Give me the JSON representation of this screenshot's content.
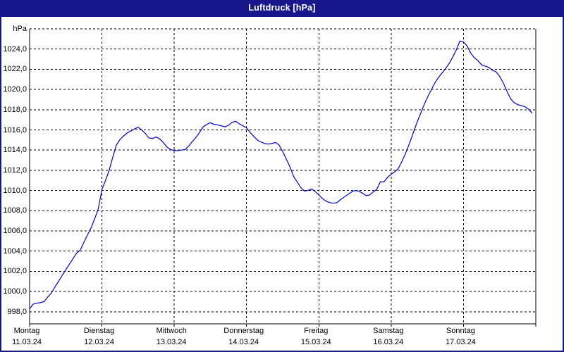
{
  "window": {
    "title": "Luftdruck [hPa]"
  },
  "axes": {
    "y_unit_label": "hPa",
    "y_tick_labels": [
      "1024,0",
      "1022,0",
      "1020,0",
      "1018,0",
      "1016,0",
      "1014,0",
      "1012,0",
      "1010,0",
      "1008,0",
      "1006,0",
      "1004,0",
      "1002,0",
      "1000,0",
      "998,0"
    ],
    "x_day_labels": [
      {
        "day": "Montag",
        "date": "11.03.24"
      },
      {
        "day": "Dienstag",
        "date": "12.03.24"
      },
      {
        "day": "Mittwoch",
        "date": "13.03.24"
      },
      {
        "day": "Donnerstag",
        "date": "14.03.24"
      },
      {
        "day": "Freitag",
        "date": "15.03.24"
      },
      {
        "day": "Samstag",
        "date": "16.03.24"
      },
      {
        "day": "Sonntag",
        "date": "17.03.24"
      }
    ]
  },
  "colors": {
    "window_frame": "#18188c",
    "title_bar": "#18188c",
    "title_text": "#ffffff",
    "plot_background": "#ffffff",
    "grid": "#000000",
    "axis": "#000000",
    "line": "#0000c8"
  },
  "chart_data": {
    "type": "line",
    "title": "Luftdruck [hPa]",
    "ylabel": "hPa",
    "xlabel": "",
    "ylim_gridlines": [
      998,
      1026
    ],
    "y_gridline_step_hpa": 2,
    "x_span_days": 7,
    "x_categories": [
      "Montag 11.03.24",
      "Dienstag 12.03.24",
      "Mittwoch 13.03.24",
      "Donnerstag 14.03.24",
      "Freitag 15.03.24",
      "Samstag 16.03.24",
      "Sonntag 17.03.24"
    ],
    "grid": "dashed",
    "legend_position": "none",
    "sample_interval_days": 0.05,
    "x_start_day": 0,
    "series": [
      {
        "name": "Luftdruck",
        "unit": "hPa",
        "values": [
          998.3,
          998.75,
          998.85,
          998.9,
          999.0,
          999.45,
          999.85,
          1000.45,
          1001.0,
          1001.6,
          1002.15,
          1002.7,
          1003.25,
          1003.8,
          1004.1,
          1004.85,
          1005.6,
          1006.3,
          1007.2,
          1008.2,
          1010.1,
          1011.0,
          1012.0,
          1013.3,
          1014.5,
          1015.05,
          1015.4,
          1015.7,
          1015.9,
          1016.1,
          1016.25,
          1016.0,
          1015.65,
          1015.2,
          1015.15,
          1015.3,
          1015.1,
          1014.75,
          1014.3,
          1014.05,
          1013.95,
          1013.95,
          1014.0,
          1014.05,
          1014.4,
          1014.85,
          1015.25,
          1015.75,
          1016.3,
          1016.55,
          1016.7,
          1016.55,
          1016.5,
          1016.4,
          1016.3,
          1016.45,
          1016.75,
          1016.85,
          1016.6,
          1016.4,
          1016.2,
          1015.75,
          1015.35,
          1015.0,
          1014.8,
          1014.65,
          1014.6,
          1014.65,
          1014.75,
          1014.5,
          1013.85,
          1013.1,
          1012.35,
          1011.4,
          1010.85,
          1010.3,
          1009.95,
          1010.0,
          1010.15,
          1009.9,
          1009.55,
          1009.2,
          1008.95,
          1008.8,
          1008.75,
          1008.8,
          1009.1,
          1009.35,
          1009.6,
          1009.85,
          1010.0,
          1009.95,
          1009.75,
          1009.5,
          1009.55,
          1009.85,
          1010.1,
          1010.85,
          1010.85,
          1011.3,
          1011.6,
          1011.85,
          1012.2,
          1012.9,
          1013.7,
          1014.6,
          1015.6,
          1016.6,
          1017.5,
          1018.4,
          1019.2,
          1019.9,
          1020.6,
          1021.15,
          1021.6,
          1022.05,
          1022.55,
          1023.2,
          1023.9,
          1024.8,
          1024.7,
          1024.3,
          1023.6,
          1023.15,
          1022.85,
          1022.45,
          1022.3,
          1022.2,
          1021.9,
          1021.75,
          1021.3,
          1020.65,
          1019.85,
          1019.1,
          1018.7,
          1018.5,
          1018.4,
          1018.3,
          1018.05,
          1017.65
        ]
      }
    ]
  }
}
